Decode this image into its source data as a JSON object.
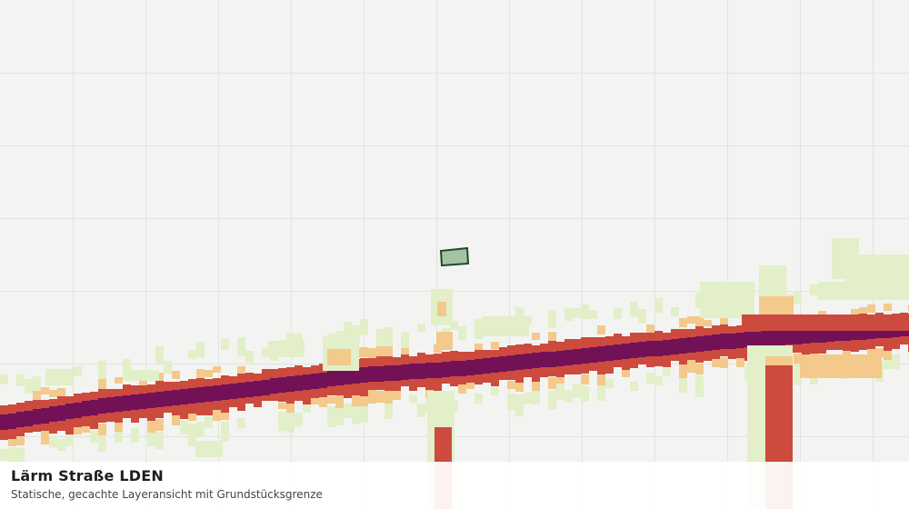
{
  "caption": {
    "title": "Lärm Straße LDEN",
    "subtitle": "Statische, gecachte Layeransicht mit Grundstücksgrenze"
  },
  "map": {
    "background_color": "#f3f4f2",
    "grid_color": "#e1e3e0",
    "noise_colors": {
      "level_1": "#e2efc8",
      "level_2": "#f3c98c",
      "level_3": "#cc4a3e",
      "level_4": "#731157"
    },
    "parcel_fill": "#a4c2a6",
    "parcel_stroke": "#1f4a2a"
  }
}
